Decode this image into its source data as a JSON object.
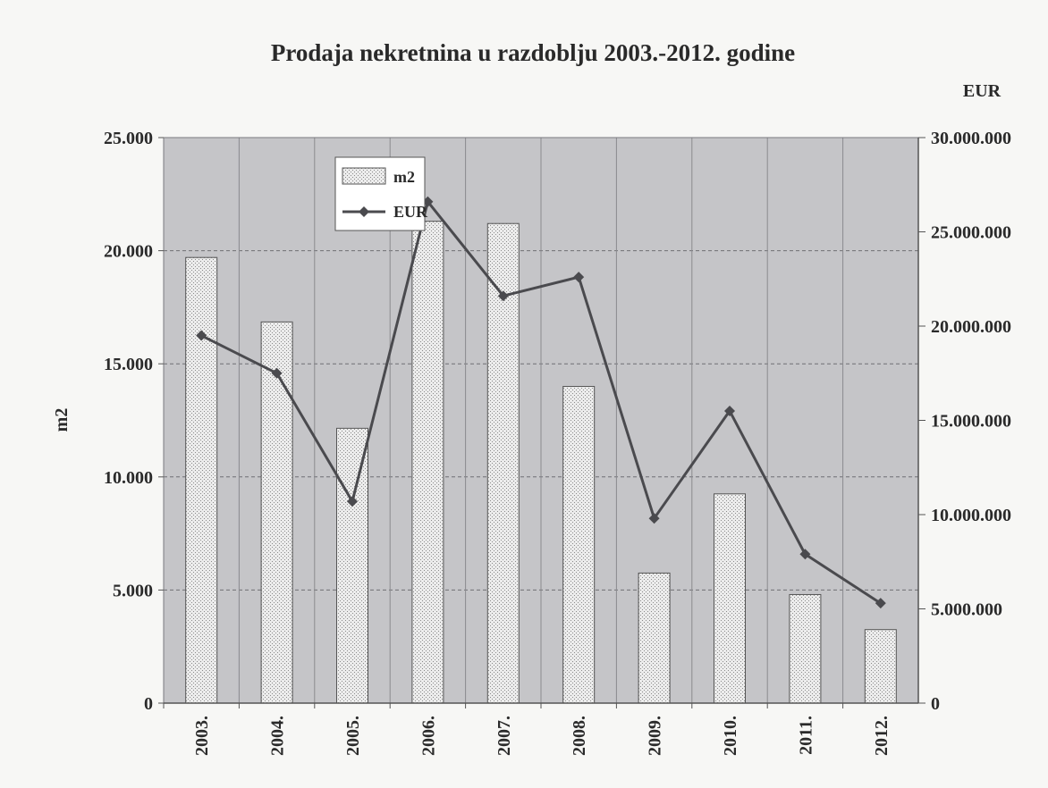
{
  "chart_data": {
    "type": "bar",
    "title": "Prodaja nekretnina u razdoblju 2003.-2012. godine",
    "categories": [
      "2003.",
      "2004.",
      "2005.",
      "2006.",
      "2007.",
      "2008.",
      "2009.",
      "2010.",
      "2011.",
      "2012."
    ],
    "series": [
      {
        "name": "m2",
        "type": "bar",
        "axis": "left",
        "values": [
          19700,
          16850,
          12150,
          21300,
          21200,
          14000,
          5750,
          9250,
          4800,
          3250
        ]
      },
      {
        "name": "EUR",
        "type": "line",
        "axis": "right",
        "values": [
          19500000,
          17500000,
          10700000,
          26600000,
          21600000,
          22600000,
          9800000,
          15500000,
          7900000,
          5300000
        ]
      }
    ],
    "left_axis": {
      "label": "m2",
      "ylim": [
        0,
        25000
      ],
      "ticks": [
        0,
        5000,
        10000,
        15000,
        20000,
        25000
      ],
      "tick_labels": [
        "0",
        "5.000",
        "10.000",
        "15.000",
        "20.000",
        "25.000"
      ]
    },
    "right_axis": {
      "label": "EUR",
      "ylim": [
        0,
        30000000
      ],
      "ticks": [
        0,
        5000000,
        10000000,
        15000000,
        20000000,
        25000000,
        30000000
      ],
      "tick_labels": [
        "0",
        "5.000.000",
        "10.000.000",
        "15.000.000",
        "20.000.000",
        "25.000.000",
        "30.000.000"
      ]
    },
    "grid": true,
    "legend_position": "top-left",
    "colors": {
      "plot_background": "#c5c5c8",
      "bar_fill": "#e4e4e4",
      "line": "#4a4a4e",
      "text": "#2a2a2a"
    }
  }
}
